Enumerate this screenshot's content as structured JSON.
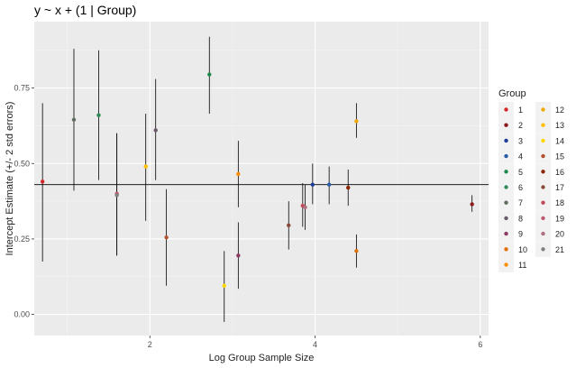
{
  "chart_data": {
    "type": "scatter",
    "title": "y ~ x + (1 | Group)",
    "xlabel": "Log Group Sample Size",
    "ylabel": "Intercept Estimate (+/- 2 std errors)",
    "xlim": [
      0.6,
      6.1
    ],
    "ylim": [
      -0.07,
      0.97
    ],
    "x_ticks": [
      2,
      4,
      6
    ],
    "x_tick_labels": [
      "2",
      "4",
      "6"
    ],
    "y_ticks": [
      0.0,
      0.25,
      0.5,
      0.75
    ],
    "y_tick_labels": [
      "0.00",
      "0.25",
      "0.50",
      "0.75"
    ],
    "hline": 0.43,
    "grid": true,
    "legend": {
      "title": "Group",
      "placement": "right"
    },
    "series": [
      {
        "name": "1",
        "color": "#d62728",
        "x": 0.7,
        "y": 0.44,
        "lower": 0.175,
        "upper": 0.7
      },
      {
        "name": "2",
        "color": "#8b1a1a",
        "x": 5.9,
        "y": 0.365,
        "lower": 0.34,
        "upper": 0.395
      },
      {
        "name": "3",
        "color": "#1f3b99",
        "x": 3.97,
        "y": 0.43,
        "lower": 0.365,
        "upper": 0.5
      },
      {
        "name": "4",
        "color": "#2b5ca8",
        "x": 4.17,
        "y": 0.43,
        "lower": 0.365,
        "upper": 0.49
      },
      {
        "name": "5",
        "color": "#1e8a4a",
        "x": 2.72,
        "y": 0.795,
        "lower": 0.665,
        "upper": 0.92
      },
      {
        "name": "6",
        "color": "#2e8b57",
        "x": 1.38,
        "y": 0.66,
        "lower": 0.445,
        "upper": 0.875
      },
      {
        "name": "7",
        "color": "#5f6b5f",
        "x": 1.08,
        "y": 0.645,
        "lower": 0.41,
        "upper": 0.88
      },
      {
        "name": "8",
        "color": "#6b5a6b",
        "x": 2.07,
        "y": 0.61,
        "lower": 0.445,
        "upper": 0.78
      },
      {
        "name": "9",
        "color": "#8b3a62",
        "x": 3.07,
        "y": 0.195,
        "lower": 0.085,
        "upper": 0.305
      },
      {
        "name": "10",
        "color": "#e07000",
        "x": 4.5,
        "y": 0.21,
        "lower": 0.155,
        "upper": 0.265
      },
      {
        "name": "11",
        "color": "#ff8c00",
        "x": 3.07,
        "y": 0.465,
        "lower": 0.355,
        "upper": 0.575
      },
      {
        "name": "12",
        "color": "#f0a800",
        "x": 4.5,
        "y": 0.64,
        "lower": 0.585,
        "upper": 0.7
      },
      {
        "name": "13",
        "color": "#ffc000",
        "x": 1.95,
        "y": 0.49,
        "lower": 0.31,
        "upper": 0.665
      },
      {
        "name": "14",
        "color": "#ffd700",
        "x": 2.9,
        "y": 0.095,
        "lower": -0.025,
        "upper": 0.21
      },
      {
        "name": "15",
        "color": "#b5522e",
        "x": 2.2,
        "y": 0.255,
        "lower": 0.095,
        "upper": 0.415
      },
      {
        "name": "16",
        "color": "#8b2500",
        "x": 4.4,
        "y": 0.42,
        "lower": 0.36,
        "upper": 0.48
      },
      {
        "name": "17",
        "color": "#8b4a3a",
        "x": 3.68,
        "y": 0.295,
        "lower": 0.215,
        "upper": 0.375
      },
      {
        "name": "18",
        "color": "#c04a5a",
        "x": 3.85,
        "y": 0.36,
        "lower": 0.29,
        "upper": 0.435
      },
      {
        "name": "19",
        "color": "#c05a70",
        "x": 1.6,
        "y": 0.4,
        "lower": 0.195,
        "upper": 0.6
      },
      {
        "name": "20",
        "color": "#b07080",
        "x": 3.88,
        "y": 0.355,
        "lower": 0.28,
        "upper": 0.43
      },
      {
        "name": "21",
        "color": "#808080",
        "x": 1.6,
        "y": 0.395,
        "lower": 0.195,
        "upper": 0.6
      }
    ]
  }
}
